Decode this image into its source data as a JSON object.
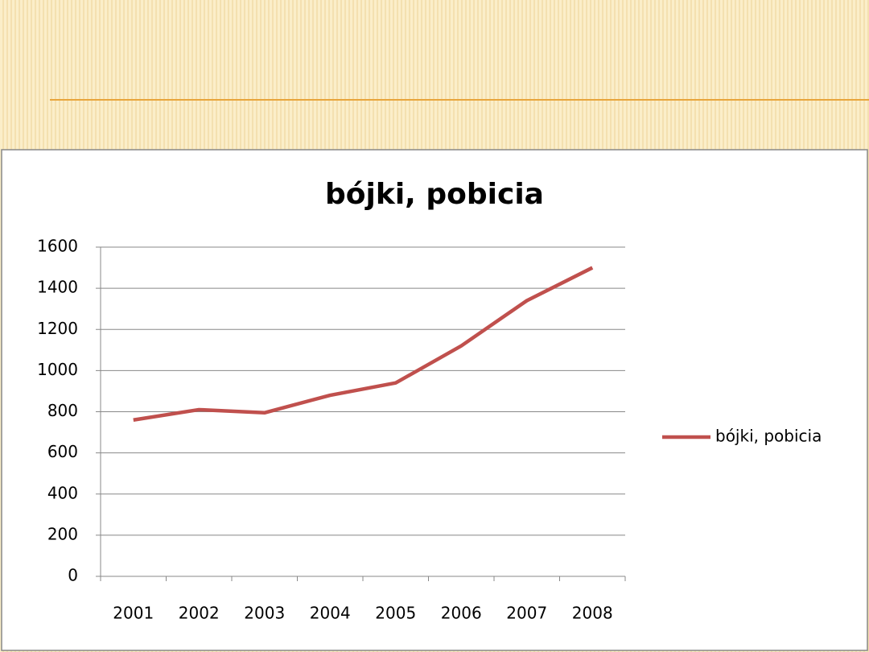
{
  "chart_data": {
    "type": "line",
    "title": "bójki, pobicia",
    "categories": [
      "2001",
      "2002",
      "2003",
      "2004",
      "2005",
      "2006",
      "2007",
      "2008"
    ],
    "series": [
      {
        "name": "bójki, pobicia",
        "color": "#c0504d",
        "values": [
          760,
          810,
          795,
          880,
          940,
          1120,
          1340,
          1500
        ]
      }
    ],
    "ylim": [
      0,
      1600
    ],
    "yticks": [
      0,
      200,
      400,
      600,
      800,
      1000,
      1200,
      1400,
      1600
    ],
    "grid": true,
    "legend": "right"
  }
}
